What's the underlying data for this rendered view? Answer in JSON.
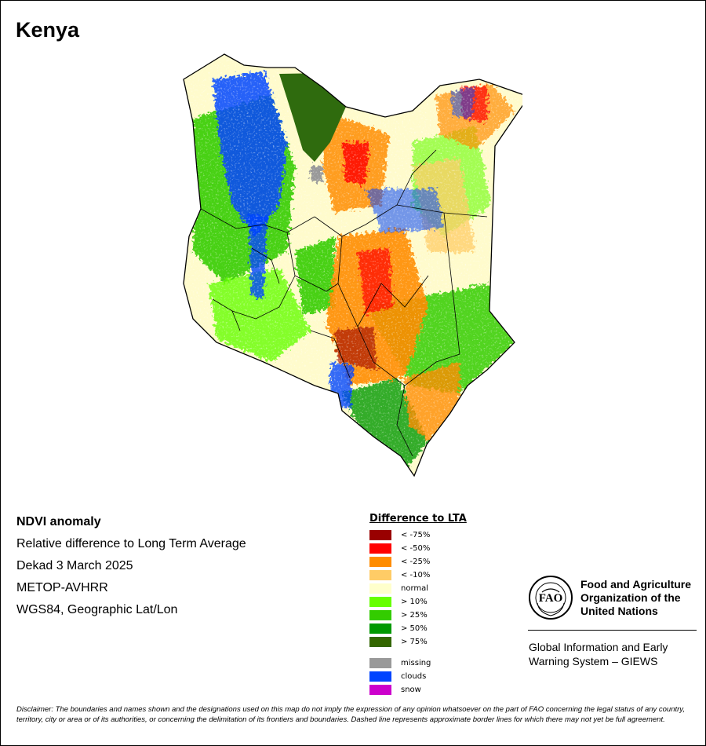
{
  "map": {
    "title": "Kenya",
    "colors": {
      "country_outline": "#000000",
      "lake": "#2f6b0e",
      "base_normal": "#fffbcc"
    }
  },
  "info": {
    "heading": "NDVI anomaly",
    "line1": "Relative difference to Long Term Average",
    "line2": "Dekad 3 March 2025",
    "line3": "METOP-AVHRR",
    "line4": "WGS84, Geographic Lat/Lon"
  },
  "legend": {
    "title": "Difference to LTA",
    "items": [
      {
        "label": "< -75%",
        "color": "#990000"
      },
      {
        "label": "< -50%",
        "color": "#ff0000"
      },
      {
        "label": "< -25%",
        "color": "#ff8c00"
      },
      {
        "label": "< -10%",
        "color": "#ffcc66"
      },
      {
        "label": "normal",
        "color": "#ffffcc"
      },
      {
        "label": "> 10%",
        "color": "#66ff00"
      },
      {
        "label": "> 25%",
        "color": "#33cc00"
      },
      {
        "label": "> 50%",
        "color": "#009900"
      },
      {
        "label": "> 75%",
        "color": "#336600"
      }
    ],
    "extra": [
      {
        "label": "missing",
        "color": "#999999"
      },
      {
        "label": "clouds",
        "color": "#0044ff"
      },
      {
        "label": "snow",
        "color": "#cc00cc"
      }
    ]
  },
  "fao": {
    "logo_text": "FAO",
    "name_line1": "Food and Agriculture",
    "name_line2": "Organization of the",
    "name_line3": "United Nations",
    "giews_line1": "Global Information and Early",
    "giews_line2": "Warning System – GIEWS"
  },
  "disclaimer": {
    "label": "Disclaimer:",
    "text": " The boundaries and names shown and the designations used on this map do not imply the expression of any opinion whatsoever on the part of FAO concerning the legal status of any country, territory, city or area or of its authorities, or concerning the delimitation of its frontiers and boundaries. Dashed line represents approximate border lines for which there may not yet be full agreement."
  }
}
